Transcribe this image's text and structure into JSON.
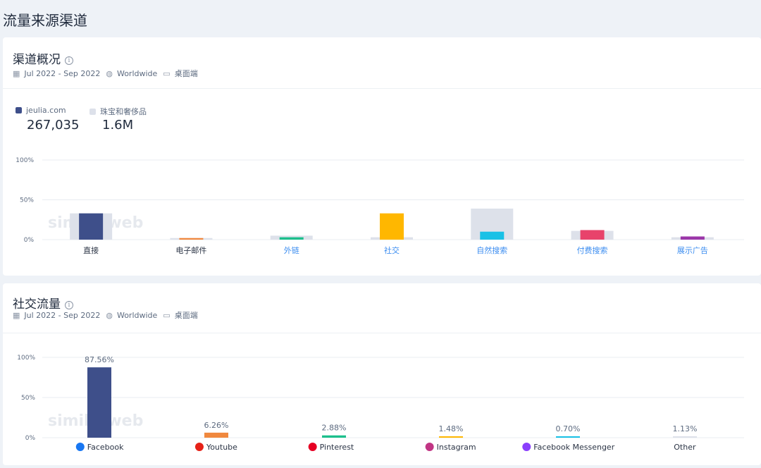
{
  "page_title": "流量来源渠道",
  "overview": {
    "title": "渠道概况",
    "info_glyph": "i",
    "date_range": "Jul 2022 - Sep 2022",
    "region": "Worldwide",
    "device": "桌面端",
    "legend": [
      {
        "label": "jeulia.com",
        "value": "267,035",
        "color": "#3e4f8a"
      },
      {
        "label": "珠宝和奢侈品",
        "value": "1.6M",
        "color": "#dde1ea"
      }
    ],
    "watermark": "similarweb"
  },
  "social": {
    "title": "社交流量",
    "info_glyph": "i",
    "date_range": "Jul 2022 - Sep 2022",
    "region": "Worldwide",
    "device": "桌面端",
    "watermark": "similarweb"
  },
  "chart_data": [
    {
      "type": "bar",
      "yticks": [
        "100%",
        "50%",
        "0%"
      ],
      "ylim": [
        0,
        100
      ],
      "grid": true,
      "categories": [
        "直接",
        "电子邮件",
        "外链",
        "社交",
        "自然搜索",
        "付费搜索",
        "展示广告"
      ],
      "category_colors": [
        "#2b3445",
        "#2b3445",
        "#3d8ef0",
        "#3d8ef0",
        "#3d8ef0",
        "#3d8ef0",
        "#3d8ef0"
      ],
      "series": [
        {
          "name": "珠宝和奢侈品",
          "values": [
            33,
            2,
            5,
            3,
            39,
            11,
            3
          ],
          "color": "#dde1ea"
        },
        {
          "name": "jeulia.com",
          "values": [
            33,
            2,
            3,
            33,
            10,
            12,
            4
          ],
          "colors": [
            "#3e4f8a",
            "#f0883e",
            "#1dbf8c",
            "#ffb700",
            "#19c1e6",
            "#e8436b",
            "#9b37a9"
          ]
        }
      ]
    },
    {
      "type": "bar",
      "yticks": [
        "100%",
        "50%",
        "0%"
      ],
      "ylim": [
        0,
        100
      ],
      "grid": true,
      "categories": [
        "Facebook",
        "Youtube",
        "Pinterest",
        "Instagram",
        "Facebook Messenger",
        "Other"
      ],
      "icons": [
        "facebook-icon",
        "youtube-icon",
        "pinterest-icon",
        "instagram-icon",
        "messenger-icon",
        ""
      ],
      "icon_colors": [
        "#1877f2",
        "#e62117",
        "#e60023",
        "#c13584",
        "#8a3ffc",
        ""
      ],
      "values": [
        87.56,
        6.26,
        2.88,
        1.48,
        0.7,
        1.13
      ],
      "labels": [
        "87.56%",
        "6.26%",
        "2.88%",
        "1.48%",
        "0.70%",
        "1.13%"
      ],
      "colors": [
        "#3e4f8a",
        "#f0883e",
        "#1dbf8c",
        "#ffb700",
        "#19c1e6",
        "#dde1ea"
      ]
    }
  ]
}
